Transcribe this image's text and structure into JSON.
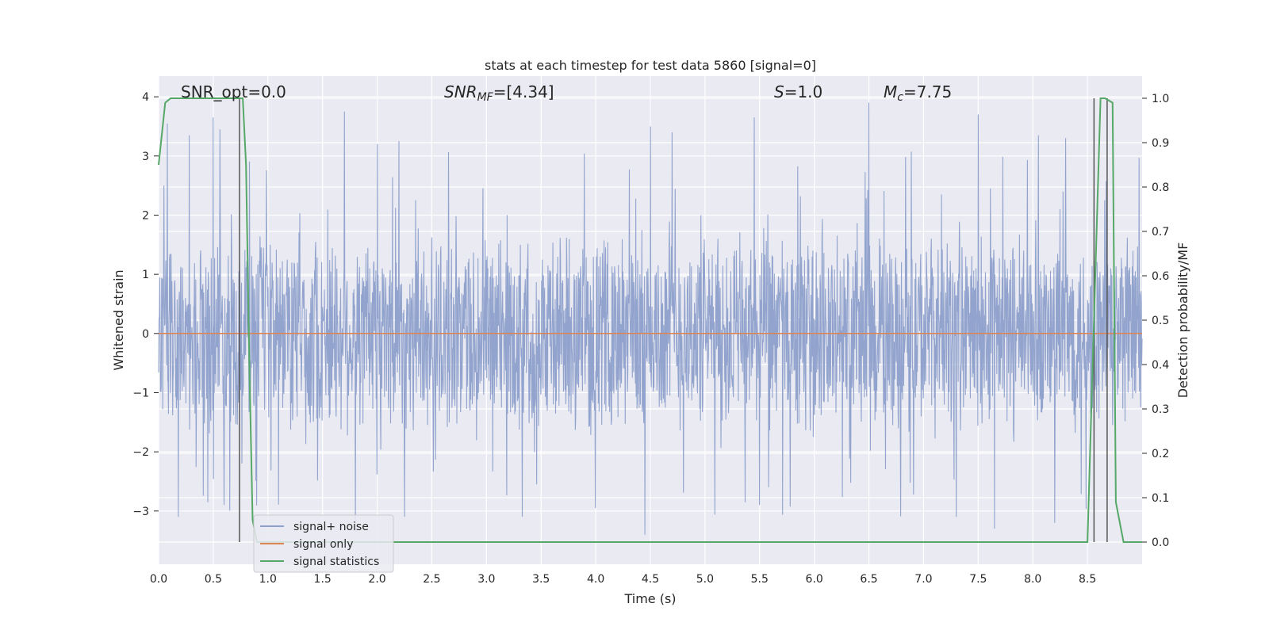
{
  "chart_data": {
    "type": "line",
    "title": "stats at each timestep for test data 5860 [signal=0]",
    "xlabel": "Time (s)",
    "ylabel": "Whitened strain",
    "y2label": "Detection probability/MF",
    "xlim": [
      0,
      9.0
    ],
    "ylim": [
      -3.9,
      4.35
    ],
    "y2lim": [
      -0.05,
      1.05
    ],
    "xticks": [
      "0.0",
      "0.5",
      "1.0",
      "1.5",
      "2.0",
      "2.5",
      "3.0",
      "3.5",
      "4.0",
      "4.5",
      "5.0",
      "5.5",
      "6.0",
      "6.5",
      "7.0",
      "7.5",
      "8.0",
      "8.5"
    ],
    "yticks": [
      "4",
      "3",
      "2",
      "1",
      "0",
      "−1",
      "−2",
      "−3"
    ],
    "y2ticks": [
      "1.0",
      "0.9",
      "0.8",
      "0.7",
      "0.6",
      "0.5",
      "0.4",
      "0.3",
      "0.2",
      "0.1",
      "0.0"
    ],
    "grid": true,
    "legend_position": "lower-left",
    "annotations": {
      "snr_opt": "SNR_opt=0.0",
      "snr_mf_main": "SNR",
      "snr_mf_sub": "MF",
      "snr_mf_value": "=[4.34]",
      "s_main": "S",
      "s_value": "=1.0",
      "mc_main": "M",
      "mc_sub": "c",
      "mc_value": "=7.75"
    },
    "series": [
      {
        "name": "signal+ noise",
        "color": "#8da0cb",
        "amplitude_envelope": {
          "typical_range": [
            -1.8,
            1.8
          ],
          "peak_max": 3.9,
          "peak_min": -3.4,
          "notable_peaks": [
            {
              "x": 0.05,
              "y": 2.5
            },
            {
              "x": 0.08,
              "y": 3.55
            },
            {
              "x": 0.28,
              "y": 3.35
            },
            {
              "x": 0.5,
              "y": 3.65
            },
            {
              "x": 0.56,
              "y": 3.45
            },
            {
              "x": 1.7,
              "y": 3.75
            },
            {
              "x": 2.0,
              "y": 3.2
            },
            {
              "x": 2.2,
              "y": 3.25
            },
            {
              "x": 4.5,
              "y": 3.5
            },
            {
              "x": 4.7,
              "y": 3.4
            },
            {
              "x": 5.45,
              "y": 3.65
            },
            {
              "x": 6.5,
              "y": 3.9
            },
            {
              "x": 7.5,
              "y": 3.7
            },
            {
              "x": 8.05,
              "y": 3.35
            },
            {
              "x": 8.3,
              "y": 3.3
            },
            {
              "x": 0.18,
              "y": -3.1
            },
            {
              "x": 0.6,
              "y": -2.9
            },
            {
              "x": 1.7,
              "y": -3.4
            },
            {
              "x": 1.8,
              "y": -3.35
            },
            {
              "x": 2.25,
              "y": -3.1
            },
            {
              "x": 4.45,
              "y": -3.4
            },
            {
              "x": 5.5,
              "y": -2.9
            },
            {
              "x": 7.3,
              "y": -3.1
            },
            {
              "x": 7.65,
              "y": -3.3
            },
            {
              "x": 8.2,
              "y": -3.2
            }
          ]
        }
      },
      {
        "name": "signal only",
        "color": "#dd8452",
        "x": [
          0,
          9.0
        ],
        "y": [
          0,
          0
        ]
      },
      {
        "name": "signal statistics",
        "color": "#55a868",
        "axis": "right",
        "x": [
          0.0,
          0.06,
          0.11,
          0.5,
          0.7,
          0.77,
          0.8,
          0.83,
          0.86,
          0.9,
          1.0,
          2.0,
          2.25,
          8.45,
          8.5,
          8.55,
          8.62,
          8.66,
          8.73,
          8.76,
          8.83,
          8.92,
          9.0
        ],
        "y": [
          0.85,
          0.99,
          1.0,
          1.0,
          1.0,
          1.0,
          0.85,
          0.4,
          0.05,
          0.0,
          0.0,
          0.0,
          0.0,
          0.0,
          0.0,
          0.42,
          1.0,
          1.0,
          0.99,
          0.09,
          0.0,
          0.0,
          0.0
        ]
      }
    ],
    "vertical_markers": {
      "color": "#555555",
      "x": [
        0.74,
        8.56,
        8.68
      ]
    }
  }
}
